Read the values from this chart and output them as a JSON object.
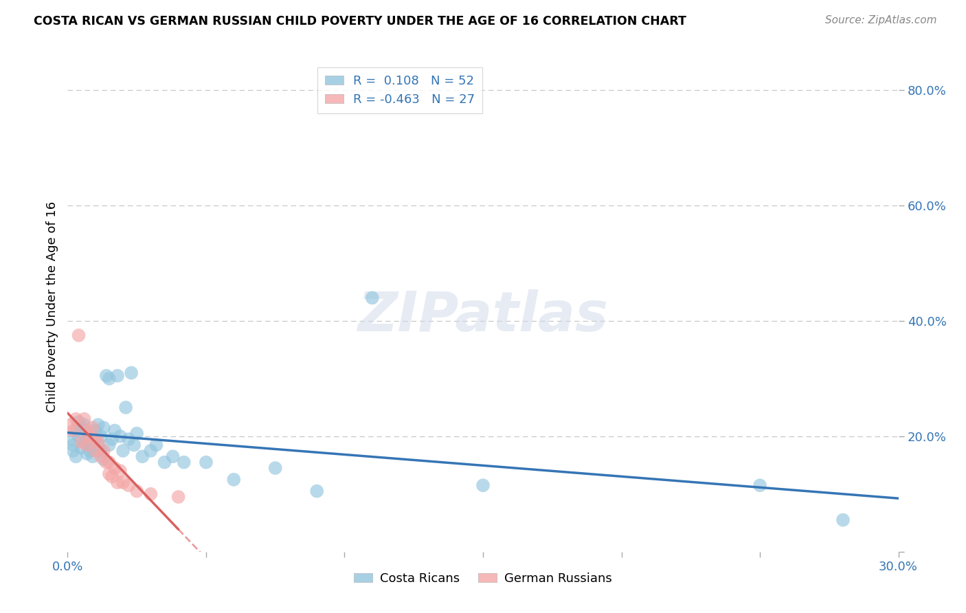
{
  "title": "COSTA RICAN VS GERMAN RUSSIAN CHILD POVERTY UNDER THE AGE OF 16 CORRELATION CHART",
  "source": "Source: ZipAtlas.com",
  "ylabel": "Child Poverty Under the Age of 16",
  "xlim": [
    0.0,
    0.3
  ],
  "ylim": [
    0.0,
    0.85
  ],
  "xticks": [
    0.0,
    0.05,
    0.1,
    0.15,
    0.2,
    0.25,
    0.3
  ],
  "xtick_labels": [
    "0.0%",
    "",
    "",
    "",
    "",
    "",
    "30.0%"
  ],
  "yticks": [
    0.0,
    0.2,
    0.4,
    0.6,
    0.8
  ],
  "ytick_labels": [
    "",
    "20.0%",
    "40.0%",
    "60.0%",
    "80.0%"
  ],
  "grid_color": "#c8c8c8",
  "background_color": "#ffffff",
  "costa_rican_color": "#92c5de",
  "german_russian_color": "#f4a6a6",
  "costa_rican_R": 0.108,
  "costa_rican_N": 52,
  "german_russian_R": -0.463,
  "german_russian_N": 27,
  "watermark": "ZIPatlas",
  "cr_line_color": "#3575b5",
  "gr_line_color": "#d96060",
  "costa_rican_x": [
    0.001,
    0.002,
    0.002,
    0.003,
    0.003,
    0.004,
    0.004,
    0.005,
    0.005,
    0.006,
    0.006,
    0.007,
    0.007,
    0.008,
    0.008,
    0.009,
    0.009,
    0.01,
    0.01,
    0.011,
    0.011,
    0.012,
    0.012,
    0.013,
    0.013,
    0.014,
    0.015,
    0.015,
    0.016,
    0.017,
    0.018,
    0.019,
    0.02,
    0.021,
    0.022,
    0.023,
    0.024,
    0.025,
    0.027,
    0.03,
    0.032,
    0.035,
    0.038,
    0.042,
    0.05,
    0.06,
    0.075,
    0.09,
    0.11,
    0.15,
    0.25,
    0.28
  ],
  "costa_rican_y": [
    0.195,
    0.175,
    0.185,
    0.21,
    0.165,
    0.2,
    0.225,
    0.215,
    0.18,
    0.19,
    0.22,
    0.17,
    0.195,
    0.185,
    0.175,
    0.2,
    0.165,
    0.21,
    0.195,
    0.185,
    0.22,
    0.175,
    0.2,
    0.16,
    0.215,
    0.305,
    0.3,
    0.185,
    0.195,
    0.21,
    0.305,
    0.2,
    0.175,
    0.25,
    0.195,
    0.31,
    0.185,
    0.205,
    0.165,
    0.175,
    0.185,
    0.155,
    0.165,
    0.155,
    0.155,
    0.125,
    0.145,
    0.105,
    0.44,
    0.115,
    0.115,
    0.055
  ],
  "german_russian_x": [
    0.001,
    0.002,
    0.003,
    0.004,
    0.005,
    0.006,
    0.007,
    0.007,
    0.008,
    0.009,
    0.01,
    0.01,
    0.011,
    0.012,
    0.013,
    0.014,
    0.015,
    0.015,
    0.016,
    0.017,
    0.018,
    0.019,
    0.02,
    0.022,
    0.025,
    0.03,
    0.04
  ],
  "german_russian_y": [
    0.22,
    0.21,
    0.23,
    0.375,
    0.19,
    0.23,
    0.185,
    0.21,
    0.2,
    0.215,
    0.175,
    0.195,
    0.19,
    0.165,
    0.175,
    0.155,
    0.155,
    0.135,
    0.13,
    0.145,
    0.12,
    0.14,
    0.12,
    0.115,
    0.105,
    0.1,
    0.095
  ]
}
